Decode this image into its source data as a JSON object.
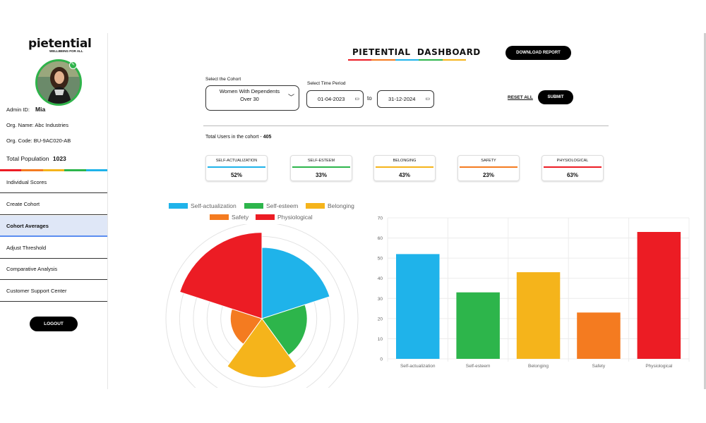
{
  "brand": {
    "name": "pietential",
    "tagline": "WELLBEING FOR ALL"
  },
  "profile": {
    "admin_label": "Admin ID:",
    "admin_id": "Mia",
    "org_name": "Org. Name: Abc Industries",
    "org_code": "Org. Code: BU-9AC020-AB",
    "population_label": "Total Population",
    "population": "1023"
  },
  "nav": [
    {
      "label": "Individual Scores",
      "active": false
    },
    {
      "label": "Create Cohort",
      "active": false
    },
    {
      "label": "Cohort Averages",
      "active": true
    },
    {
      "label": "Adjust Threshold",
      "active": false
    },
    {
      "label": "Comparative Analysis",
      "active": false
    },
    {
      "label": "Customer Support Center",
      "active": false
    }
  ],
  "logout_label": "LOGOUT",
  "header": {
    "title": "PIETENTIAL  DASHBOARD",
    "download_label": "DOWNLOAD REPORT"
  },
  "filters": {
    "cohort_label": "Select the Cohort",
    "cohort_value": "Women With Dependents Over 30",
    "period_label": "Select Time Period",
    "from_date": "01-04-2023",
    "to_label": "to",
    "to_date": "31-12-2024",
    "reset_label": "RESET ALL",
    "submit_label": "SUBMIT"
  },
  "total_users": {
    "label": "Total Users in the cohort - ",
    "value": "405"
  },
  "cards": [
    {
      "label": "SELF-ACTUALIZATION",
      "value": "52%",
      "color": "#1fb3ea"
    },
    {
      "label": "SELF-ESTEEM",
      "value": "33%",
      "color": "#2db54b"
    },
    {
      "label": "BELONGING",
      "value": "43%",
      "color": "#f5b41b"
    },
    {
      "label": "SAFETY",
      "value": "23%",
      "color": "#f47b20"
    },
    {
      "label": "PHYSIOLOGICAL",
      "value": "63%",
      "color": "#ec1c24"
    }
  ],
  "chart_data": [
    {
      "type": "polar-area",
      "categories": [
        "Self-actualization",
        "Self-esteem",
        "Belonging",
        "Safety",
        "Physiological"
      ],
      "values": [
        52,
        33,
        43,
        23,
        63
      ],
      "colors": [
        "#1fb3ea",
        "#2db54b",
        "#f5b41b",
        "#f47b20",
        "#ec1c24"
      ],
      "legend": "top"
    },
    {
      "type": "bar",
      "categories": [
        "Self-actualization",
        "Self-esteem",
        "Belonging",
        "Safety",
        "Physiological"
      ],
      "values": [
        52,
        33,
        43,
        23,
        63
      ],
      "colors": [
        "#1fb3ea",
        "#2db54b",
        "#f5b41b",
        "#f47b20",
        "#ec1c24"
      ],
      "ylim": [
        0,
        70
      ],
      "yticks": [
        0,
        10,
        20,
        30,
        40,
        50,
        60,
        70
      ],
      "grid": true
    }
  ],
  "colors": {
    "accent": "#000000",
    "active_nav": "#dfe7f7",
    "active_border": "#5b8df0"
  }
}
